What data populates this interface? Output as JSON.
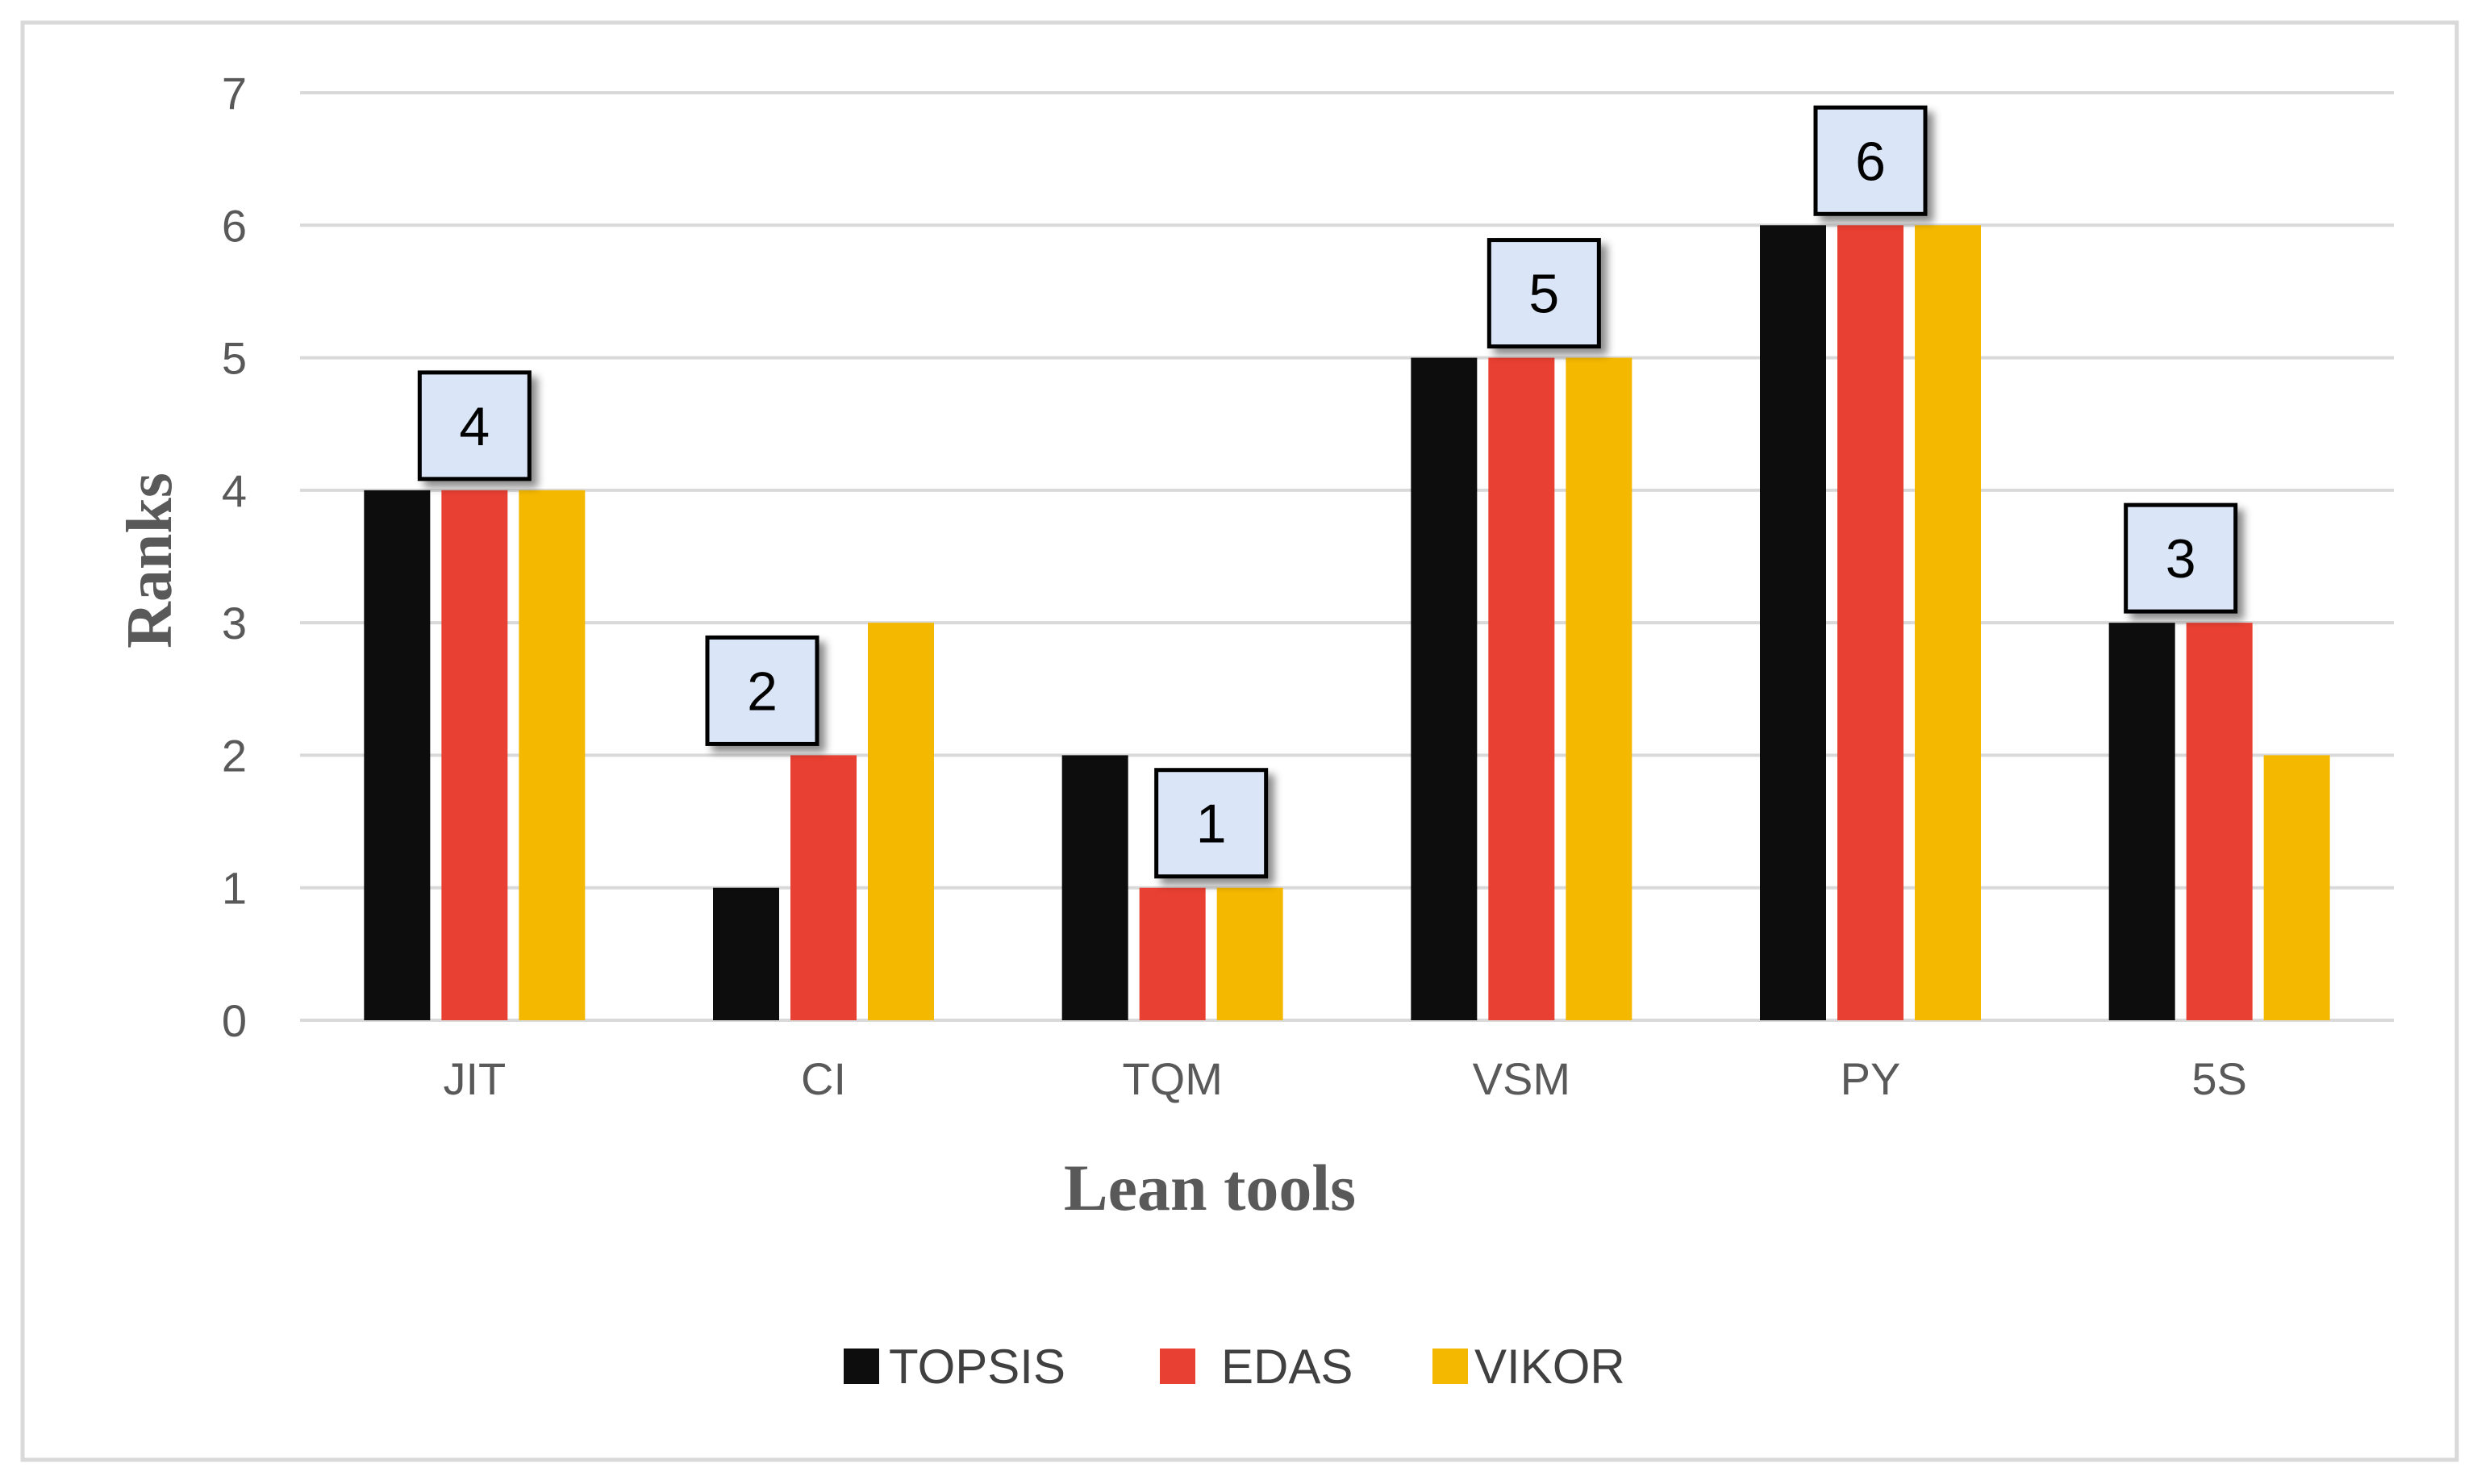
{
  "chart_data": {
    "type": "bar",
    "title": "",
    "xlabel": "Lean tools",
    "ylabel": "Ranks",
    "categories": [
      "JIT",
      "CI",
      "TQM",
      "VSM",
      "PY",
      "5S"
    ],
    "series": [
      {
        "name": "TOPSIS",
        "color": "#0d0d0d",
        "values": [
          4,
          1,
          2,
          5,
          6,
          3
        ]
      },
      {
        "name": "EDAS",
        "color": "#e84032",
        "values": [
          4,
          2,
          1,
          5,
          6,
          3
        ]
      },
      {
        "name": "VIKOR",
        "color": "#f5b800",
        "values": [
          4,
          3,
          1,
          5,
          6,
          2
        ]
      }
    ],
    "ylim": [
      0,
      7
    ],
    "yticks": [
      0,
      1,
      2,
      3,
      4,
      5,
      6,
      7
    ],
    "grid": true,
    "legend_position": "bottom",
    "annotations": [
      {
        "category": "JIT",
        "label": "4"
      },
      {
        "category": "CI",
        "label": "2"
      },
      {
        "category": "TQM",
        "label": "1"
      },
      {
        "category": "VSM",
        "label": "5"
      },
      {
        "category": "PY",
        "label": "6"
      },
      {
        "category": "5S",
        "label": "3"
      }
    ]
  }
}
